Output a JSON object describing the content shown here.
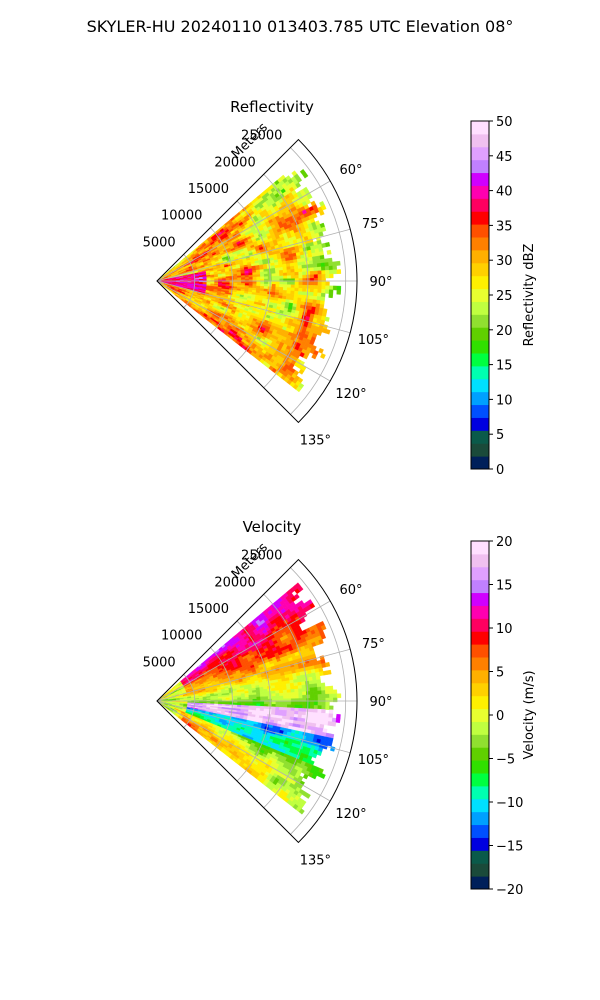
{
  "figure": {
    "title": "SKYLER-HU  20240110  013403.785 UTC Elevation 08°"
  },
  "chart_data": [
    {
      "type": "heatmap",
      "projection": "polar-sector",
      "title": "Reflectivity",
      "radial_label": "Meters",
      "radial_ticks": [
        "5000",
        "10000",
        "15000",
        "20000",
        "25000"
      ],
      "radial_tick_values": [
        5000,
        10000,
        15000,
        20000,
        25000
      ],
      "radial_max": 26500,
      "angle_range_deg": [
        45,
        135
      ],
      "angle_ticks": [
        "60°",
        "75°",
        "90°",
        "105°",
        "120°",
        "135°"
      ],
      "angle_tick_values": [
        60,
        75,
        90,
        105,
        120,
        135
      ],
      "data_angle_range_deg": [
        50,
        128
      ],
      "colorbar": {
        "label": "Reflectivity dBZ",
        "range": [
          0,
          50
        ],
        "ticks": [
          "0",
          "5",
          "10",
          "15",
          "20",
          "25",
          "30",
          "35",
          "40",
          "45",
          "50"
        ],
        "tick_values": [
          0,
          5,
          10,
          15,
          20,
          25,
          30,
          35,
          40,
          45,
          50
        ],
        "colors": [
          "#00205a",
          "#1a4a3a",
          "#0a5a4a",
          "#0000e0",
          "#0050ff",
          "#00a0ff",
          "#00e0ff",
          "#00ffb0",
          "#00ff40",
          "#30e000",
          "#60d000",
          "#90e030",
          "#c0ff40",
          "#e8ff30",
          "#fff000",
          "#ffd000",
          "#ffb000",
          "#ff8000",
          "#ff5000",
          "#ff0000",
          "#ff0060",
          "#ff00b0",
          "#d000ff",
          "#c080ff",
          "#e0a0ff",
          "#f0c0f0",
          "#ffe0ff"
        ]
      },
      "field_description": "widespread 20-35 dBZ echoes with embedded 35-45 dBZ cores",
      "grid": true
    },
    {
      "type": "heatmap",
      "projection": "polar-sector",
      "title": "Velocity",
      "radial_label": "Meters",
      "radial_ticks": [
        "5000",
        "10000",
        "15000",
        "20000",
        "25000"
      ],
      "radial_tick_values": [
        5000,
        10000,
        15000,
        20000,
        25000
      ],
      "radial_max": 26500,
      "angle_range_deg": [
        45,
        135
      ],
      "angle_ticks": [
        "60°",
        "75°",
        "90°",
        "105°",
        "120°",
        "135°"
      ],
      "angle_tick_values": [
        60,
        75,
        90,
        105,
        120,
        135
      ],
      "data_angle_range_deg": [
        50,
        128
      ],
      "colorbar": {
        "label": "Velocity (m/s)",
        "range": [
          -20,
          20
        ],
        "ticks": [
          "−20",
          "−15",
          "−10",
          "−5",
          "0",
          "5",
          "10",
          "15",
          "20"
        ],
        "tick_values": [
          -20,
          -15,
          -10,
          -5,
          0,
          5,
          10,
          15,
          20
        ],
        "colors": [
          "#00205a",
          "#1a4a3a",
          "#0a5a4a",
          "#0000e0",
          "#0050ff",
          "#00a0ff",
          "#00e0ff",
          "#00ffb0",
          "#00ff40",
          "#30e000",
          "#60d000",
          "#90e030",
          "#c0ff40",
          "#e8ff30",
          "#fff000",
          "#ffd000",
          "#ffb000",
          "#ff8000",
          "#ff5000",
          "#ff0000",
          "#ff0060",
          "#ff00b0",
          "#d000ff",
          "#c080ff",
          "#e0a0ff",
          "#f0c0f0",
          "#ffe0ff"
        ]
      },
      "field_description": "positive (orange/red) near 60-75°, negative (green/cyan) band along ~95-115°, mixed gradient; pink/magenta folding band near 90-100°",
      "grid": true
    }
  ]
}
